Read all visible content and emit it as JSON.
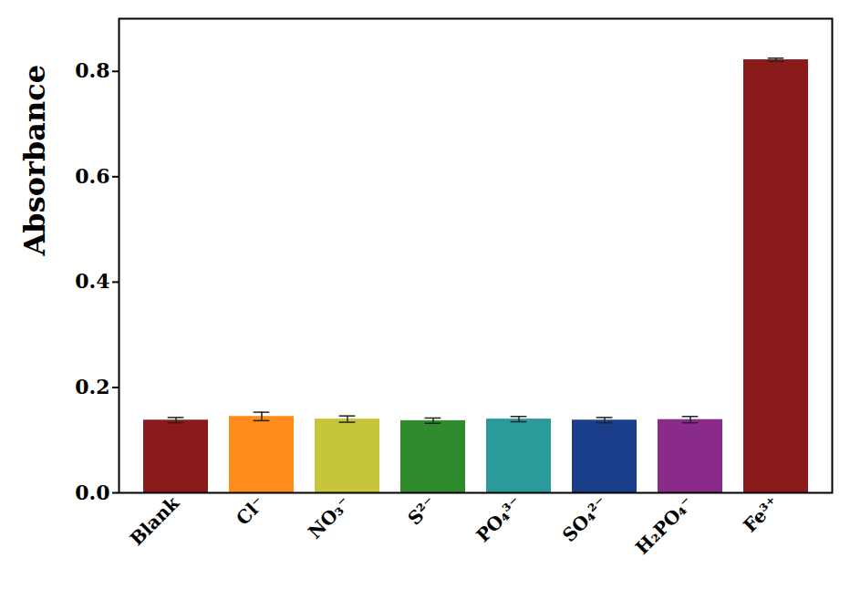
{
  "chart_data": {
    "type": "bar",
    "y_label": "Absorbance",
    "categories": [
      "Blank",
      "Cl⁻",
      "NO₃⁻",
      "S²⁻",
      "PO₄³⁻",
      "SO₄²⁻",
      "H₂PO₄⁻",
      "Fe³⁺"
    ],
    "values": [
      0.138,
      0.145,
      0.14,
      0.137,
      0.14,
      0.138,
      0.139,
      0.822
    ],
    "errors": [
      0.005,
      0.008,
      0.006,
      0.005,
      0.005,
      0.005,
      0.006,
      0.003
    ],
    "colors": [
      "#8b1a1a",
      "#ff8c1a",
      "#c6c63a",
      "#2e8b2e",
      "#2a9a9a",
      "#1a3e8a",
      "#8a2b8a",
      "#8b1a1a"
    ],
    "ylim": [
      0,
      0.9
    ],
    "yticks": [
      {
        "value": 0,
        "label": "0.0"
      },
      0.2,
      0.4,
      0.6,
      0.8
    ],
    "grid": false
  }
}
